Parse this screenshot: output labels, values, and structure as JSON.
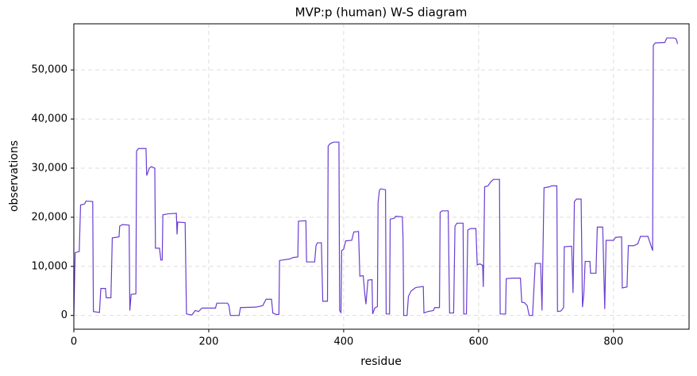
{
  "chart_data": {
    "type": "line",
    "title": "MVP:p (human) W-S diagram",
    "x_label": "residue",
    "y_label": "observations",
    "x": [
      0,
      2,
      8,
      10,
      16,
      18,
      28,
      29,
      38,
      40,
      47,
      48,
      55,
      57,
      67,
      68,
      72,
      82,
      83,
      85,
      92,
      93,
      96,
      107,
      108,
      112,
      115,
      120,
      121,
      127,
      129,
      131,
      132,
      140,
      152,
      153,
      154,
      165,
      167,
      175,
      180,
      185,
      190,
      210,
      212,
      228,
      230,
      232,
      245,
      247,
      270,
      280,
      285,
      293,
      295,
      300,
      304,
      305,
      320,
      325,
      332,
      333,
      344,
      345,
      357,
      359,
      361,
      367,
      369,
      376,
      377,
      380,
      385,
      393,
      394,
      396,
      397,
      400,
      403,
      412,
      415,
      422,
      424,
      429,
      431,
      433,
      436,
      442,
      443,
      446,
      450,
      451,
      453,
      455,
      462,
      463,
      468,
      469,
      475,
      477,
      487,
      488,
      489,
      494,
      496,
      500,
      505,
      507,
      518,
      519,
      525,
      533,
      535,
      542,
      543,
      546,
      555,
      557,
      563,
      565,
      568,
      577,
      578,
      582,
      584,
      588,
      596,
      598,
      602,
      606,
      607,
      609,
      614,
      618,
      622,
      631,
      632,
      640,
      641,
      650,
      662,
      664,
      668,
      672,
      675,
      680,
      684,
      692,
      694,
      697,
      705,
      708,
      716,
      717,
      722,
      726,
      727,
      738,
      740,
      742,
      745,
      752,
      754,
      756,
      758,
      765,
      766,
      774,
      776,
      784,
      787,
      789,
      800,
      803,
      812,
      813,
      820,
      822,
      830,
      836,
      840,
      851,
      858,
      859,
      862,
      876,
      879,
      890,
      893,
      895
    ],
    "values": [
      0,
      12800,
      13000,
      22500,
      22700,
      23300,
      23200,
      800,
      600,
      5500,
      5500,
      3600,
      3600,
      15800,
      16000,
      18200,
      18500,
      18400,
      1000,
      4300,
      4400,
      33500,
      34000,
      34000,
      28500,
      30000,
      30300,
      30000,
      13700,
      13700,
      11300,
      11300,
      20500,
      20700,
      20800,
      16500,
      19000,
      18900,
      300,
      100,
      1000,
      800,
      1500,
      1500,
      2500,
      2500,
      2000,
      0,
      0,
      1600,
      1700,
      2000,
      3300,
      3300,
      500,
      200,
      200,
      11200,
      11500,
      11800,
      11900,
      19200,
      19300,
      10900,
      10900,
      14200,
      14800,
      14800,
      2900,
      2900,
      34500,
      35000,
      35300,
      35300,
      1000,
      600,
      13200,
      13500,
      15200,
      15300,
      17000,
      17100,
      8000,
      8100,
      4800,
      2300,
      7200,
      7300,
      300,
      1500,
      1800,
      23000,
      25500,
      25800,
      25600,
      300,
      300,
      19600,
      19800,
      20200,
      20100,
      15700,
      0,
      0,
      3900,
      5000,
      5500,
      5700,
      5900,
      500,
      800,
      1000,
      1600,
      1600,
      21000,
      21300,
      21300,
      500,
      500,
      18200,
      18800,
      18800,
      300,
      300,
      17400,
      17700,
      17700,
      10300,
      10500,
      10200,
      5800,
      26200,
      26400,
      27200,
      27700,
      27700,
      300,
      300,
      7500,
      7600,
      7600,
      2700,
      2600,
      2000,
      0,
      0,
      10600,
      10600,
      1000,
      26000,
      26200,
      26400,
      26400,
      800,
      900,
      1600,
      14000,
      14100,
      4600,
      23200,
      23700,
      23700,
      1700,
      4400,
      11000,
      11000,
      8600,
      8600,
      18000,
      18000,
      1300,
      15300,
      15300,
      15900,
      16000,
      5600,
      5800,
      14200,
      14200,
      14600,
      16100,
      16100,
      13200,
      55000,
      55500,
      55600,
      56500,
      56500,
      56300,
      55300
    ],
    "color": "#6a3dd1",
    "xlim": [
      0,
      912
    ],
    "xticks": [
      0,
      200,
      400,
      600,
      800
    ],
    "ylim": [
      -2800,
      59400
    ],
    "yticks": [
      0,
      {
        "value": 10000,
        "label": "10,000"
      },
      {
        "value": 20000,
        "label": "20,000"
      },
      {
        "value": 30000,
        "label": "30,000"
      },
      {
        "value": 40000,
        "label": "40,000"
      },
      {
        "value": 50000,
        "label": "50,000"
      }
    ],
    "grid": true
  }
}
